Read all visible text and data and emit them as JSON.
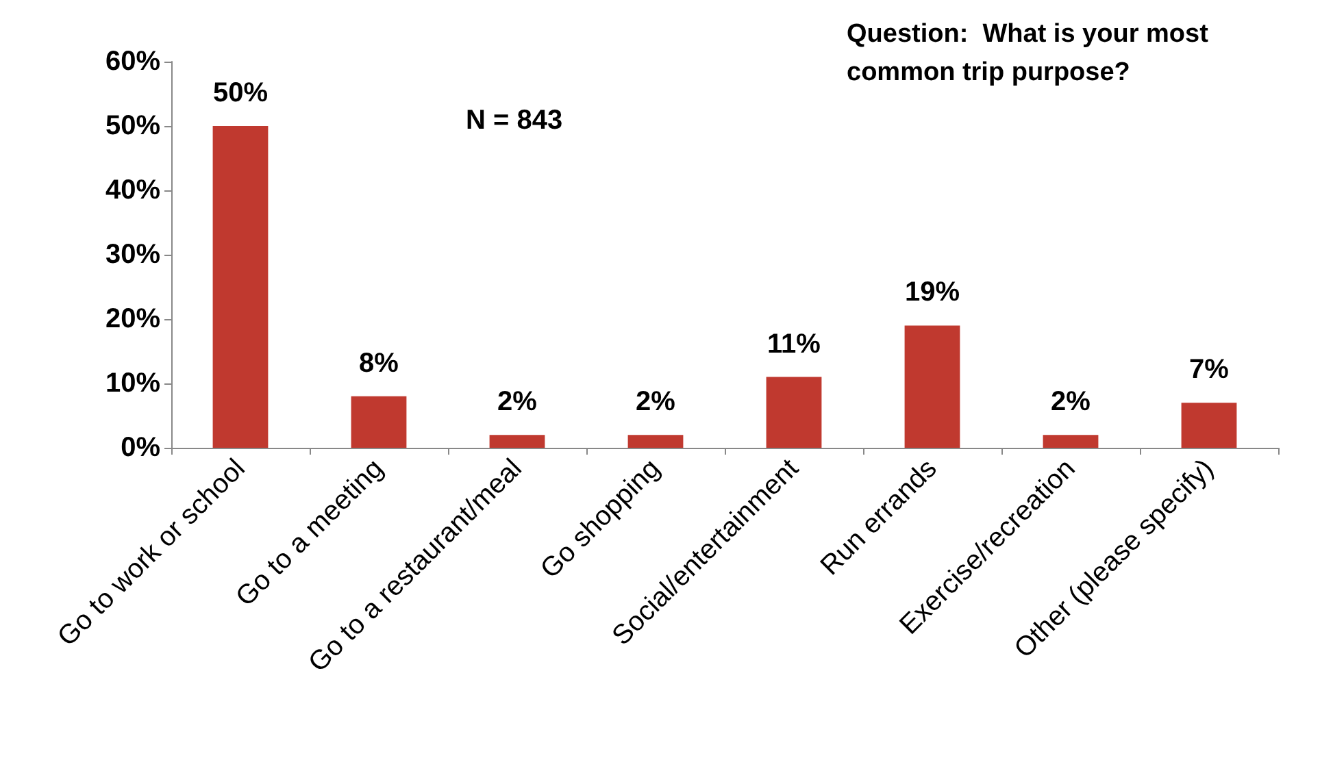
{
  "chart_data": {
    "type": "bar",
    "title": "Question:  What is your most common trip purpose?",
    "categories": [
      "Go to work or school",
      "Go to a meeting",
      "Go to a restaurant/meal",
      "Go shopping",
      "Social/entertainment",
      "Run errands",
      "Exercise/recreation",
      "Other (please specify)"
    ],
    "values": [
      50,
      8,
      2,
      2,
      11,
      19,
      2,
      7
    ],
    "value_labels": [
      "50%",
      "8%",
      "2%",
      "2%",
      "11%",
      "19%",
      "2%",
      "7%"
    ],
    "color": "#c0392f",
    "ylim": [
      0,
      60
    ],
    "yticks": [
      {
        "value": 0,
        "label": "0%"
      },
      {
        "value": 10,
        "label": "10%"
      },
      {
        "value": 20,
        "label": "20%"
      },
      {
        "value": 30,
        "label": "30%"
      },
      {
        "value": 40,
        "label": "40%"
      },
      {
        "value": 50,
        "label": "50%"
      },
      {
        "value": 60,
        "label": "60%"
      }
    ],
    "annotations": [
      "N = 843"
    ],
    "grid": false
  }
}
